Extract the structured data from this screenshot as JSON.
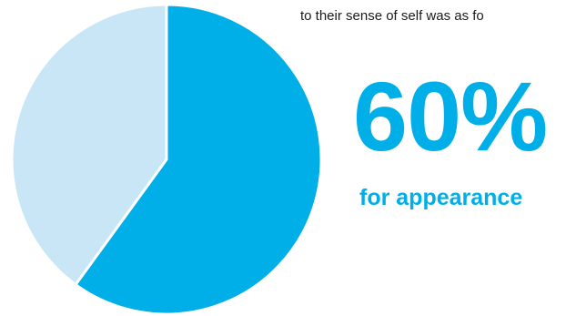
{
  "intro_text": "to their sense of self was as fo",
  "highlight": {
    "value": "60%",
    "label": "for appearance"
  },
  "colors": {
    "primary": "#00aee8",
    "secondary": "#c9e6f7",
    "divider": "#ffffff",
    "text": "#1a1a1a"
  },
  "chart_data": {
    "type": "pie",
    "slices": [
      {
        "value": 60,
        "color": "#00aee8"
      },
      {
        "value": 40,
        "color": "#c9e6f7"
      }
    ],
    "title": "",
    "start_angle": "12 o'clock",
    "direction": "clockwise"
  }
}
